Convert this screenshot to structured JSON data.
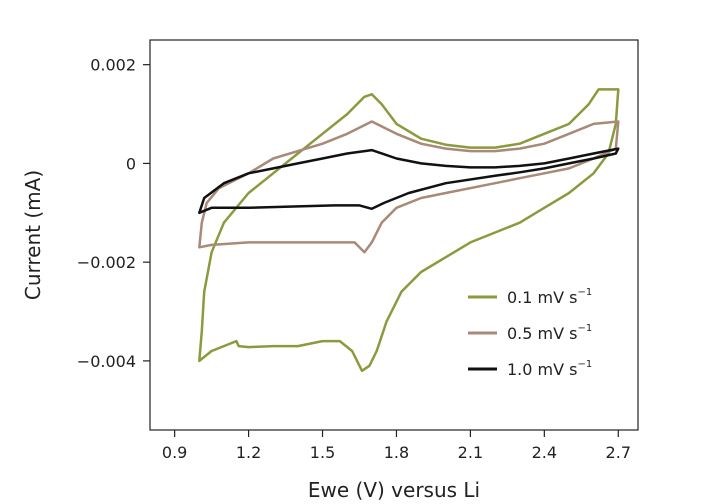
{
  "chart_data": {
    "type": "line",
    "title": "",
    "xlabel": "Ewe (V) versus Li",
    "ylabel": "Current (mA)",
    "xlim": [
      0.8,
      2.78
    ],
    "ylim": [
      -0.0054,
      0.0025
    ],
    "x_ticks": [
      {
        "value": 0.9,
        "label": "0.9"
      },
      {
        "value": 1.2,
        "label": "1.2"
      },
      {
        "value": 1.5,
        "label": "1.5"
      },
      {
        "value": 1.8,
        "label": "1.8"
      },
      {
        "value": 2.1,
        "label": "2.1"
      },
      {
        "value": 2.4,
        "label": "2.4"
      },
      {
        "value": 2.7,
        "label": "2.7"
      }
    ],
    "y_ticks": [
      {
        "value": 0.002,
        "label": "0.002"
      },
      {
        "value": 0,
        "label": "0"
      },
      {
        "value": -0.002,
        "label": "−0.002"
      },
      {
        "value": -0.004,
        "label": "−0.004"
      }
    ],
    "grid": false,
    "legend_position": "bottom-right",
    "series": [
      {
        "name": "0.1 mV s",
        "unit_superscript": "−1",
        "color": "#8a9a3c",
        "points": [
          [
            1.0,
            -0.004
          ],
          [
            1.01,
            -0.0034
          ],
          [
            1.02,
            -0.0026
          ],
          [
            1.05,
            -0.0018
          ],
          [
            1.1,
            -0.0012
          ],
          [
            1.2,
            -0.0006
          ],
          [
            1.3,
            -0.0002
          ],
          [
            1.4,
            0.0002
          ],
          [
            1.5,
            0.0006
          ],
          [
            1.6,
            0.001
          ],
          [
            1.67,
            0.00135
          ],
          [
            1.7,
            0.0014
          ],
          [
            1.74,
            0.0012
          ],
          [
            1.8,
            0.0008
          ],
          [
            1.9,
            0.0005
          ],
          [
            2.0,
            0.00038
          ],
          [
            2.1,
            0.00032
          ],
          [
            2.2,
            0.00032
          ],
          [
            2.3,
            0.0004
          ],
          [
            2.4,
            0.0006
          ],
          [
            2.5,
            0.0008
          ],
          [
            2.58,
            0.0012
          ],
          [
            2.62,
            0.0015
          ],
          [
            2.7,
            0.0015
          ],
          [
            2.69,
            0.0008
          ],
          [
            2.66,
            0.0002
          ],
          [
            2.6,
            -0.0002
          ],
          [
            2.5,
            -0.0006
          ],
          [
            2.4,
            -0.0009
          ],
          [
            2.3,
            -0.0012
          ],
          [
            2.2,
            -0.0014
          ],
          [
            2.1,
            -0.0016
          ],
          [
            2.0,
            -0.0019
          ],
          [
            1.9,
            -0.0022
          ],
          [
            1.82,
            -0.0026
          ],
          [
            1.76,
            -0.0032
          ],
          [
            1.72,
            -0.0038
          ],
          [
            1.69,
            -0.0041
          ],
          [
            1.66,
            -0.0042
          ],
          [
            1.62,
            -0.0038
          ],
          [
            1.57,
            -0.0036
          ],
          [
            1.5,
            -0.0036
          ],
          [
            1.4,
            -0.0037
          ],
          [
            1.3,
            -0.0037
          ],
          [
            1.2,
            -0.00372
          ],
          [
            1.16,
            -0.0037
          ],
          [
            1.15,
            -0.0036
          ],
          [
            1.1,
            -0.0037
          ],
          [
            1.05,
            -0.0038
          ],
          [
            1.0,
            -0.004
          ]
        ]
      },
      {
        "name": "0.5 mV s",
        "unit_superscript": "−1",
        "color": "#a98978",
        "points": [
          [
            1.0,
            -0.0017
          ],
          [
            1.01,
            -0.0012
          ],
          [
            1.03,
            -0.0008
          ],
          [
            1.08,
            -0.0005
          ],
          [
            1.2,
            -0.0002
          ],
          [
            1.3,
            0.0001
          ],
          [
            1.4,
            0.00025
          ],
          [
            1.5,
            0.0004
          ],
          [
            1.6,
            0.0006
          ],
          [
            1.7,
            0.00085
          ],
          [
            1.8,
            0.0006
          ],
          [
            1.9,
            0.0004
          ],
          [
            2.0,
            0.0003
          ],
          [
            2.1,
            0.00025
          ],
          [
            2.2,
            0.00025
          ],
          [
            2.3,
            0.0003
          ],
          [
            2.4,
            0.0004
          ],
          [
            2.5,
            0.0006
          ],
          [
            2.6,
            0.0008
          ],
          [
            2.7,
            0.00085
          ],
          [
            2.69,
            0.0003
          ],
          [
            2.6,
            0.0001
          ],
          [
            2.5,
            -0.0001
          ],
          [
            2.4,
            -0.0002
          ],
          [
            2.3,
            -0.0003
          ],
          [
            2.2,
            -0.0004
          ],
          [
            2.0,
            -0.0006
          ],
          [
            1.9,
            -0.0007
          ],
          [
            1.8,
            -0.0009
          ],
          [
            1.74,
            -0.0012
          ],
          [
            1.7,
            -0.0016
          ],
          [
            1.67,
            -0.0018
          ],
          [
            1.63,
            -0.0016
          ],
          [
            1.55,
            -0.0016
          ],
          [
            1.4,
            -0.0016
          ],
          [
            1.2,
            -0.0016
          ],
          [
            1.05,
            -0.00165
          ],
          [
            1.0,
            -0.0017
          ]
        ]
      },
      {
        "name": "1.0 mV s",
        "unit_superscript": "−1",
        "color": "#111111",
        "points": [
          [
            1.0,
            -0.001
          ],
          [
            1.02,
            -0.0007
          ],
          [
            1.1,
            -0.0004
          ],
          [
            1.2,
            -0.0002
          ],
          [
            1.3,
            -0.0001
          ],
          [
            1.4,
            0.0
          ],
          [
            1.5,
            0.0001
          ],
          [
            1.6,
            0.0002
          ],
          [
            1.7,
            0.00027
          ],
          [
            1.8,
            0.0001
          ],
          [
            1.9,
            0.0
          ],
          [
            2.0,
            -5e-05
          ],
          [
            2.1,
            -8e-05
          ],
          [
            2.2,
            -8e-05
          ],
          [
            2.3,
            -5e-05
          ],
          [
            2.4,
            0.0
          ],
          [
            2.5,
            0.0001
          ],
          [
            2.6,
            0.0002
          ],
          [
            2.7,
            0.0003
          ],
          [
            2.69,
            0.0002
          ],
          [
            2.6,
            0.0001
          ],
          [
            2.5,
            0.0
          ],
          [
            2.4,
            -0.0001
          ],
          [
            2.3,
            -0.00018
          ],
          [
            2.2,
            -0.00025
          ],
          [
            2.0,
            -0.0004
          ],
          [
            1.85,
            -0.0006
          ],
          [
            1.75,
            -0.0008
          ],
          [
            1.7,
            -0.00092
          ],
          [
            1.65,
            -0.00085
          ],
          [
            1.55,
            -0.00085
          ],
          [
            1.4,
            -0.00087
          ],
          [
            1.2,
            -0.0009
          ],
          [
            1.05,
            -0.0009
          ],
          [
            1.0,
            -0.001
          ]
        ]
      }
    ]
  }
}
